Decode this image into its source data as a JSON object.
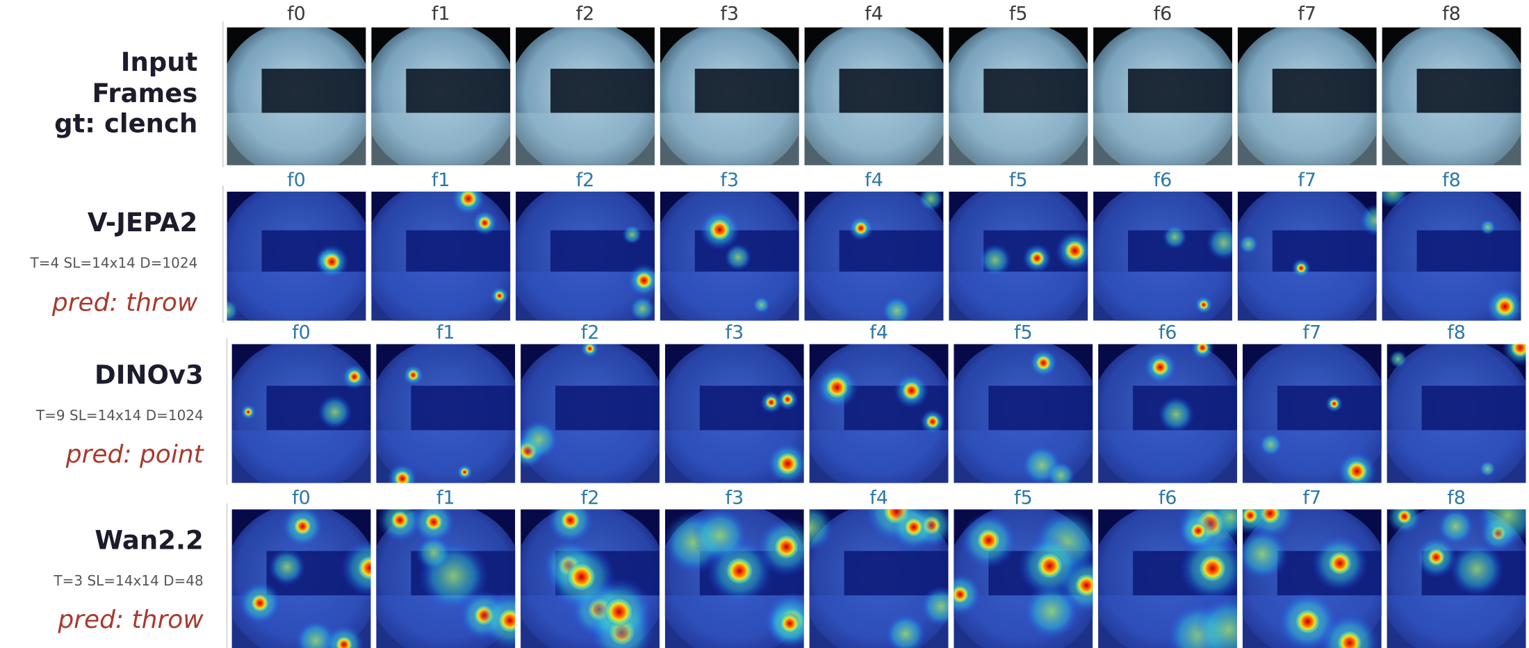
{
  "rows": [
    {
      "title": [
        "Input",
        "Frames",
        "gt: clench"
      ],
      "frames": [
        "f0",
        "f1",
        "f2",
        "f3",
        "f4",
        "f5",
        "f6",
        "f7",
        "f8"
      ]
    },
    {
      "title": "V-JEPA2",
      "config": "T=4 SL=14x14 D=1024",
      "prediction": "pred: throw",
      "frames": [
        "f0",
        "f1",
        "f2",
        "f3",
        "f4",
        "f5",
        "f6",
        "f7",
        "f8"
      ]
    },
    {
      "title": "DINOv3",
      "config": "T=9 SL=14x14 D=1024",
      "prediction": "pred: point",
      "frames": [
        "f0",
        "f1",
        "f2",
        "f3",
        "f4",
        "f5",
        "f6",
        "f7",
        "f8"
      ]
    },
    {
      "title": "Wan2.2",
      "config": "T=3 SL=14x14 D=48",
      "prediction": "pred: throw",
      "frames": [
        "f0",
        "f1",
        "f2",
        "f3",
        "f4",
        "f5",
        "f6",
        "f7",
        "f8"
      ]
    }
  ]
}
